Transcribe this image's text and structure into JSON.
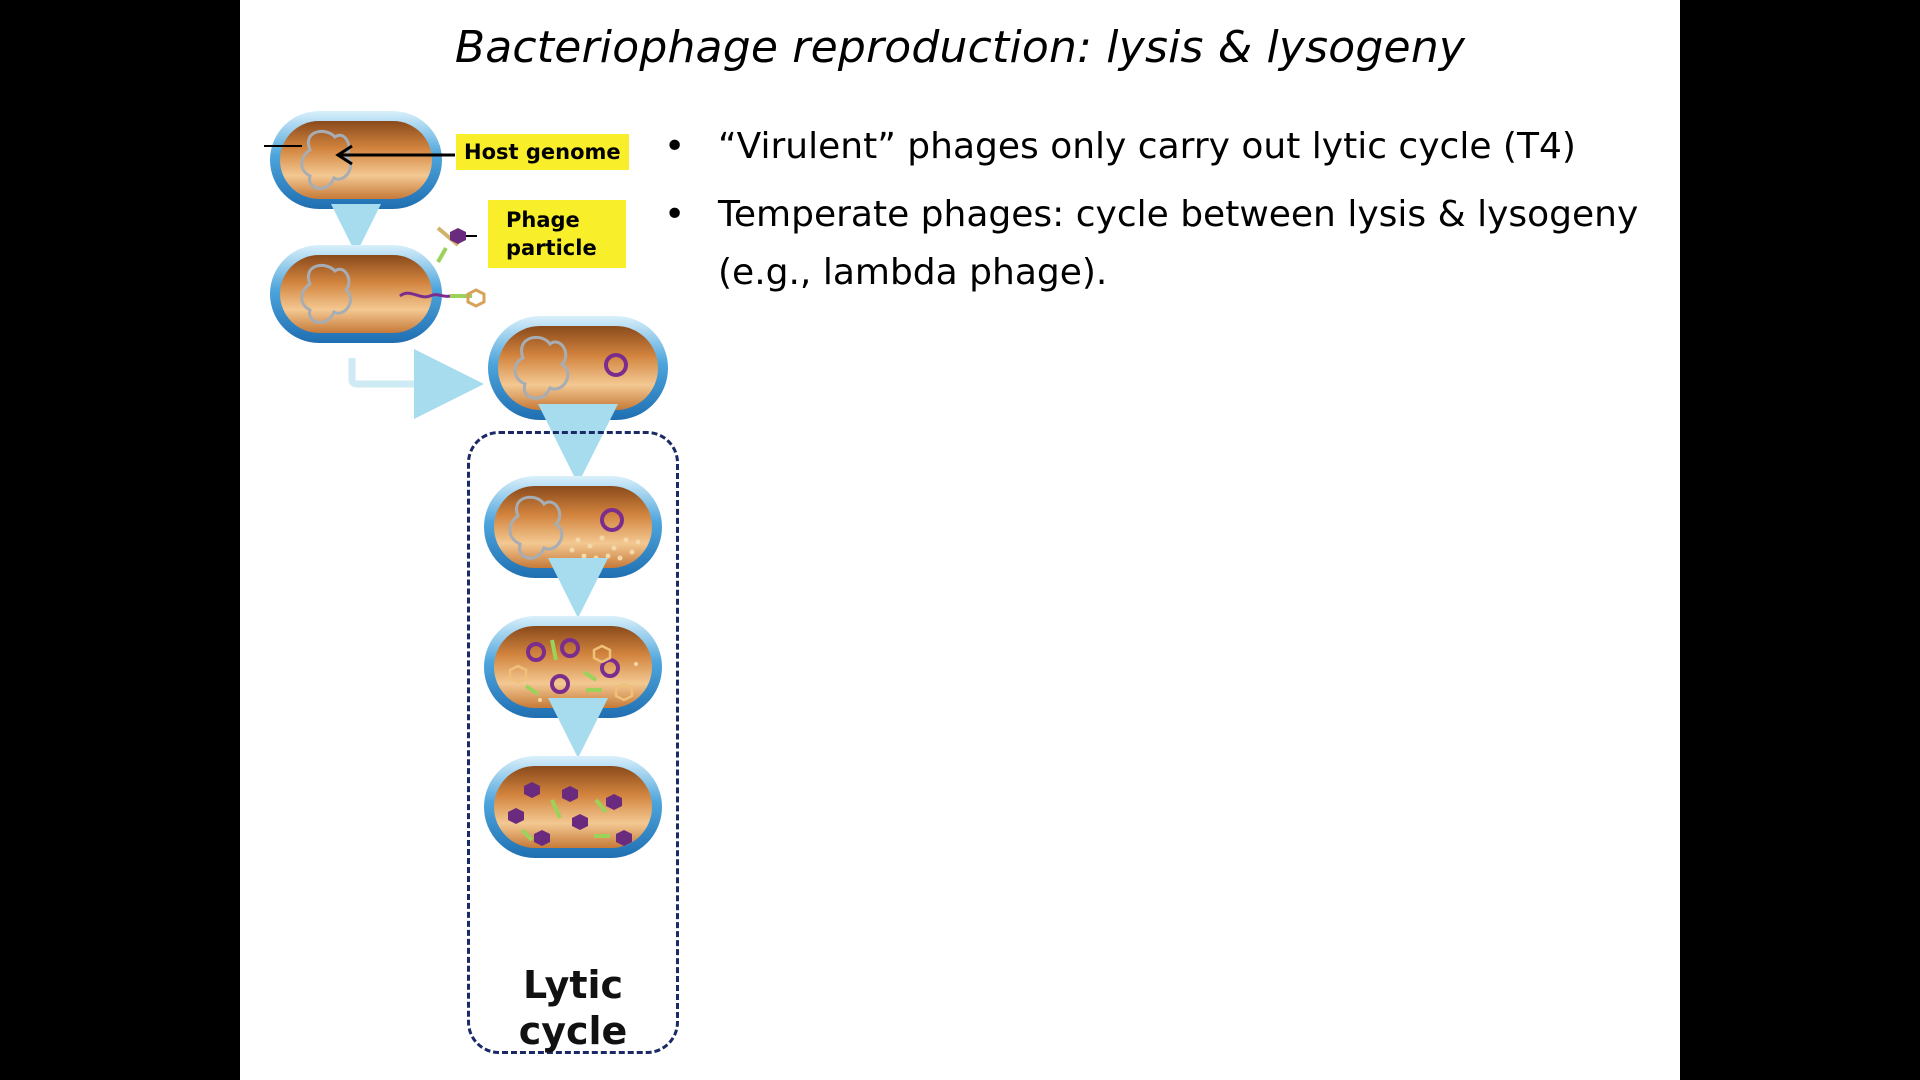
{
  "slide": {
    "title": "Bacteriophage reproduction:  lysis & lysogeny",
    "bullets": [
      "“Virulent” phages only carry out lytic cycle (T4)",
      "Temperate phages: cycle between lysis & lysogeny (e.g., lambda phage)."
    ]
  },
  "diagram": {
    "labels": {
      "host_genome": "Host genome",
      "phage_particle": "Phage particle",
      "cycle": "Lytic cycle"
    },
    "colors": {
      "label_bg": "#f8ef2a",
      "capsule": "#4a9fd6",
      "cytoplasm": "#c87a3c",
      "genome": "#9aa0a8",
      "phage_dna": "#7b2d8e",
      "tail": "#9bd35a",
      "arrow": "#a7dcef",
      "cycle_border": "#1b2a66"
    }
  }
}
